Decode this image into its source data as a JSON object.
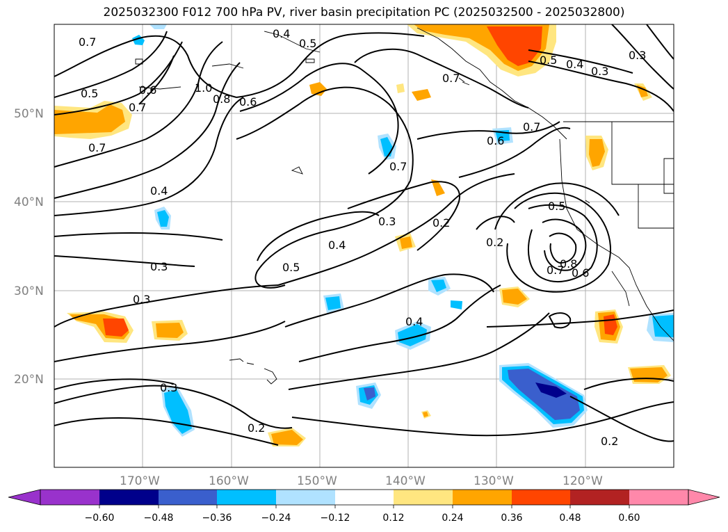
{
  "title": "2025032300 F012 700 hPa PV, river basin precipitation PC (2025032500 - 2025032800)",
  "map": {
    "lat_labels": [
      "50°N",
      "40°N",
      "30°N",
      "20°N"
    ],
    "lon_labels": [
      "170°W",
      "160°W",
      "150°W",
      "140°W",
      "130°W",
      "120°W"
    ],
    "contour_labels": [
      "0.7",
      "0.5",
      "0.6",
      "0.7",
      "1.0",
      "0.8",
      "0.6",
      "0.4",
      "0.5",
      "0.7",
      "0.5",
      "0.3",
      "0.4",
      "0.3",
      "0.7",
      "0.6",
      "0.7",
      "0.7",
      "0.4",
      "0.3",
      "0.2",
      "0.5",
      "0.4",
      "0.3",
      "0.2",
      "0.5",
      "0.8",
      "0.7",
      "0.6",
      "0.3",
      "0.4",
      "0.3",
      "0.2",
      "0.2"
    ]
  },
  "colorbar": {
    "ticks": [
      "−0.60",
      "−0.48",
      "−0.36",
      "−0.24",
      "−0.12",
      "0.12",
      "0.24",
      "0.36",
      "0.48",
      "0.60"
    ],
    "colors": [
      "#9932cc",
      "#00008b",
      "#3a5fcd",
      "#00bfff",
      "#b0e2ff",
      "#ffffff",
      "#ffe680",
      "#ffa500",
      "#ff4500",
      "#b22222",
      "#ff88aa"
    ]
  }
}
